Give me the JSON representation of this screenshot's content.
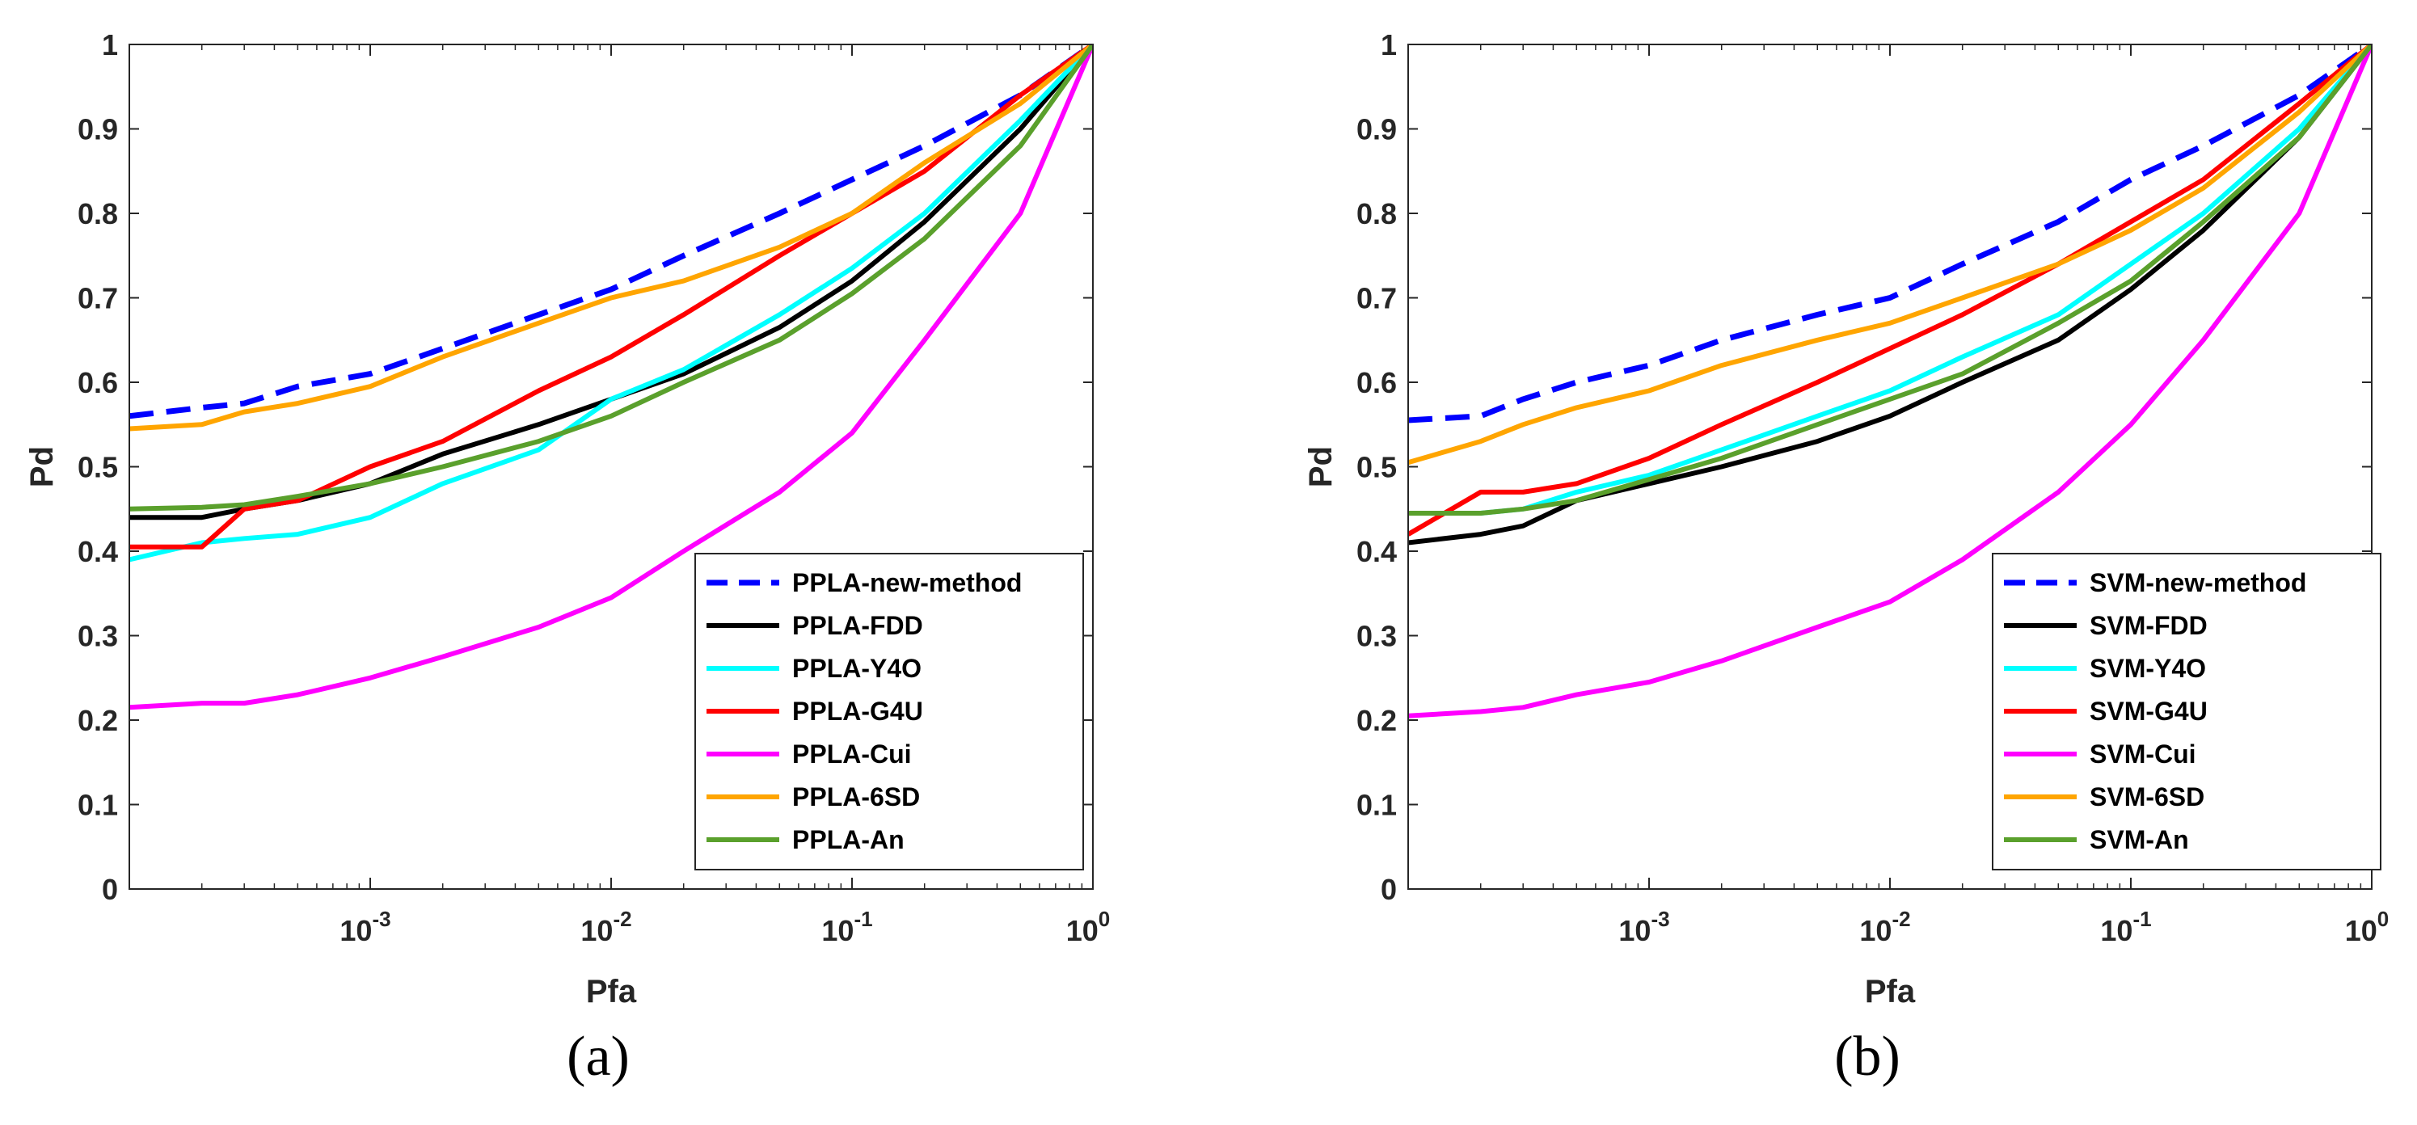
{
  "chart_data": [
    {
      "type": "line",
      "caption": "(a)",
      "xlabel": "Pfa",
      "ylabel": "Pd",
      "xscale": "log",
      "xlim": [
        0.0001,
        1
      ],
      "ylim": [
        0,
        1
      ],
      "xticks": [
        {
          "value": 0.001,
          "base": "10",
          "exp": "-3"
        },
        {
          "value": 0.01,
          "base": "10",
          "exp": "-2"
        },
        {
          "value": 0.1,
          "base": "10",
          "exp": "-1"
        },
        {
          "value": 1,
          "base": "10",
          "exp": "0"
        }
      ],
      "yticks": [
        "0",
        "0.1",
        "0.2",
        "0.3",
        "0.4",
        "0.5",
        "0.6",
        "0.7",
        "0.8",
        "0.9",
        "1"
      ],
      "legend_position": "bottom-right",
      "series": [
        {
          "name": "PPLA-new-method",
          "color": "#0000ff",
          "dashed": true,
          "x": [
            0.0001,
            0.0002,
            0.0003,
            0.0005,
            0.001,
            0.002,
            0.005,
            0.01,
            0.02,
            0.05,
            0.1,
            0.2,
            0.5,
            1
          ],
          "y": [
            0.56,
            0.57,
            0.575,
            0.595,
            0.61,
            0.64,
            0.68,
            0.71,
            0.75,
            0.8,
            0.84,
            0.88,
            0.94,
            1.0
          ]
        },
        {
          "name": "PPLA-FDD",
          "color": "#000000",
          "dashed": false,
          "x": [
            0.0001,
            0.0002,
            0.0003,
            0.0005,
            0.001,
            0.002,
            0.005,
            0.01,
            0.02,
            0.05,
            0.1,
            0.2,
            0.5,
            1
          ],
          "y": [
            0.44,
            0.44,
            0.45,
            0.46,
            0.48,
            0.515,
            0.55,
            0.58,
            0.61,
            0.665,
            0.72,
            0.79,
            0.9,
            1.0
          ]
        },
        {
          "name": "PPLA-Y4O",
          "color": "#00ffff",
          "dashed": false,
          "x": [
            0.0001,
            0.0002,
            0.0003,
            0.0005,
            0.001,
            0.002,
            0.005,
            0.01,
            0.02,
            0.05,
            0.1,
            0.2,
            0.5,
            1
          ],
          "y": [
            0.39,
            0.41,
            0.415,
            0.42,
            0.44,
            0.48,
            0.52,
            0.58,
            0.615,
            0.68,
            0.735,
            0.8,
            0.91,
            1.0
          ]
        },
        {
          "name": "PPLA-G4U",
          "color": "#ff0000",
          "dashed": false,
          "x": [
            0.0001,
            0.0002,
            0.0003,
            0.0005,
            0.001,
            0.002,
            0.005,
            0.01,
            0.02,
            0.05,
            0.1,
            0.2,
            0.5,
            1
          ],
          "y": [
            0.405,
            0.405,
            0.45,
            0.46,
            0.5,
            0.53,
            0.59,
            0.63,
            0.68,
            0.75,
            0.8,
            0.85,
            0.94,
            1.0
          ]
        },
        {
          "name": "PPLA-Cui",
          "color": "#ff00ff",
          "dashed": false,
          "x": [
            0.0001,
            0.0002,
            0.0003,
            0.0005,
            0.001,
            0.002,
            0.005,
            0.01,
            0.02,
            0.05,
            0.1,
            0.2,
            0.5,
            1
          ],
          "y": [
            0.215,
            0.22,
            0.22,
            0.23,
            0.25,
            0.275,
            0.31,
            0.345,
            0.4,
            0.47,
            0.54,
            0.65,
            0.8,
            1.0
          ]
        },
        {
          "name": "PPLA-6SD",
          "color": "#ffa500",
          "dashed": false,
          "x": [
            0.0001,
            0.0002,
            0.0003,
            0.0005,
            0.001,
            0.002,
            0.005,
            0.01,
            0.02,
            0.05,
            0.1,
            0.2,
            0.5,
            1
          ],
          "y": [
            0.545,
            0.55,
            0.565,
            0.575,
            0.595,
            0.63,
            0.67,
            0.7,
            0.72,
            0.76,
            0.8,
            0.86,
            0.93,
            1.0
          ]
        },
        {
          "name": "PPLA-An",
          "color": "#5aa02c",
          "dashed": false,
          "x": [
            0.0001,
            0.0002,
            0.0003,
            0.0005,
            0.001,
            0.002,
            0.005,
            0.01,
            0.02,
            0.05,
            0.1,
            0.2,
            0.5,
            1
          ],
          "y": [
            0.45,
            0.452,
            0.455,
            0.465,
            0.48,
            0.5,
            0.53,
            0.56,
            0.6,
            0.65,
            0.705,
            0.77,
            0.88,
            1.0
          ]
        }
      ]
    },
    {
      "type": "line",
      "caption": "(b)",
      "xlabel": "Pfa",
      "ylabel": "Pd",
      "xscale": "log",
      "xlim": [
        0.0001,
        1
      ],
      "ylim": [
        0,
        1
      ],
      "xticks": [
        {
          "value": 0.001,
          "base": "10",
          "exp": "-3"
        },
        {
          "value": 0.01,
          "base": "10",
          "exp": "-2"
        },
        {
          "value": 0.1,
          "base": "10",
          "exp": "-1"
        },
        {
          "value": 1,
          "base": "10",
          "exp": "0"
        }
      ],
      "yticks": [
        "0",
        "0.1",
        "0.2",
        "0.3",
        "0.4",
        "0.5",
        "0.6",
        "0.7",
        "0.8",
        "0.9",
        "1"
      ],
      "legend_position": "bottom-right",
      "series": [
        {
          "name": "SVM-new-method",
          "color": "#0000ff",
          "dashed": true,
          "x": [
            0.0001,
            0.0002,
            0.0003,
            0.0005,
            0.001,
            0.002,
            0.005,
            0.01,
            0.02,
            0.05,
            0.1,
            0.2,
            0.5,
            1
          ],
          "y": [
            0.555,
            0.56,
            0.58,
            0.6,
            0.62,
            0.65,
            0.68,
            0.7,
            0.74,
            0.79,
            0.84,
            0.88,
            0.94,
            1.0
          ]
        },
        {
          "name": "SVM-FDD",
          "color": "#000000",
          "dashed": false,
          "x": [
            0.0001,
            0.0002,
            0.0003,
            0.0005,
            0.001,
            0.002,
            0.005,
            0.01,
            0.02,
            0.05,
            0.1,
            0.2,
            0.5,
            1
          ],
          "y": [
            0.41,
            0.42,
            0.43,
            0.46,
            0.48,
            0.5,
            0.53,
            0.56,
            0.6,
            0.65,
            0.71,
            0.78,
            0.89,
            1.0
          ]
        },
        {
          "name": "SVM-Y4O",
          "color": "#00ffff",
          "dashed": false,
          "x": [
            0.0001,
            0.0002,
            0.0003,
            0.0005,
            0.001,
            0.002,
            0.005,
            0.01,
            0.02,
            0.05,
            0.1,
            0.2,
            0.5,
            1
          ],
          "y": [
            0.445,
            0.445,
            0.45,
            0.47,
            0.49,
            0.52,
            0.56,
            0.59,
            0.63,
            0.68,
            0.74,
            0.8,
            0.9,
            1.0
          ]
        },
        {
          "name": "SVM-G4U",
          "color": "#ff0000",
          "dashed": false,
          "x": [
            0.0001,
            0.0002,
            0.0003,
            0.0005,
            0.001,
            0.002,
            0.005,
            0.01,
            0.02,
            0.05,
            0.1,
            0.2,
            0.5,
            1
          ],
          "y": [
            0.42,
            0.47,
            0.47,
            0.48,
            0.51,
            0.55,
            0.6,
            0.64,
            0.68,
            0.74,
            0.79,
            0.84,
            0.93,
            1.0
          ]
        },
        {
          "name": "SVM-Cui",
          "color": "#ff00ff",
          "dashed": false,
          "x": [
            0.0001,
            0.0002,
            0.0003,
            0.0005,
            0.001,
            0.002,
            0.005,
            0.01,
            0.02,
            0.05,
            0.1,
            0.2,
            0.5,
            1
          ],
          "y": [
            0.205,
            0.21,
            0.215,
            0.23,
            0.245,
            0.27,
            0.31,
            0.34,
            0.39,
            0.47,
            0.55,
            0.65,
            0.8,
            1.0
          ]
        },
        {
          "name": "SVM-6SD",
          "color": "#ffa500",
          "dashed": false,
          "x": [
            0.0001,
            0.0002,
            0.0003,
            0.0005,
            0.001,
            0.002,
            0.005,
            0.01,
            0.02,
            0.05,
            0.1,
            0.2,
            0.5,
            1
          ],
          "y": [
            0.505,
            0.53,
            0.55,
            0.57,
            0.59,
            0.62,
            0.65,
            0.67,
            0.7,
            0.74,
            0.78,
            0.83,
            0.92,
            1.0
          ]
        },
        {
          "name": "SVM-An",
          "color": "#5aa02c",
          "dashed": false,
          "x": [
            0.0001,
            0.0002,
            0.0003,
            0.0005,
            0.001,
            0.002,
            0.005,
            0.01,
            0.02,
            0.05,
            0.1,
            0.2,
            0.5,
            1
          ],
          "y": [
            0.445,
            0.445,
            0.45,
            0.46,
            0.485,
            0.51,
            0.55,
            0.58,
            0.61,
            0.67,
            0.72,
            0.79,
            0.89,
            1.0
          ]
        }
      ]
    }
  ]
}
